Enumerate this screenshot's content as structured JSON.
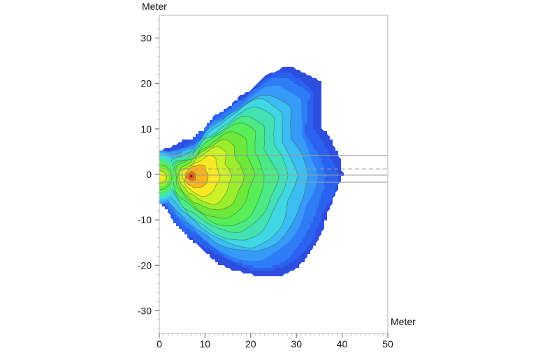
{
  "chart_data": {
    "type": "filled-contour",
    "title": "",
    "xlabel": "Meter",
    "ylabel": "Meter",
    "x_range": [
      0,
      50
    ],
    "y_range": [
      -35,
      35
    ],
    "x_ticks": [
      0,
      10,
      20,
      30,
      40,
      50
    ],
    "y_ticks": [
      -30,
      -20,
      -10,
      0,
      10,
      20,
      30
    ],
    "x_minor_step": 1,
    "y_minor_step": 2,
    "grid": false,
    "legend": false,
    "peak": {
      "x": 7,
      "y": -0.4
    },
    "level_colors": [
      "#2e4ee0",
      "#2b62ef",
      "#2e7cf6",
      "#369bf8",
      "#3bbcf2",
      "#3fd7e2",
      "#43e2b4",
      "#4bea85",
      "#57ee58",
      "#6ee83a",
      "#9cee2d",
      "#ccf128",
      "#f6e822",
      "#f9b51e",
      "#f57d1d"
    ],
    "contour_line_levels_from": 4,
    "outer_boundary": {
      "center": [
        14,
        0
      ],
      "polar_points_deg_r": [
        [
          0,
          26.2
        ],
        [
          10,
          24.9
        ],
        [
          26,
          23.6
        ],
        [
          35,
          25.9
        ],
        [
          43,
          29.2
        ],
        [
          57,
          28.2
        ],
        [
          62,
          26.6
        ],
        [
          72,
          19.6
        ],
        [
          85,
          15.2
        ],
        [
          100,
          13.2
        ],
        [
          112,
          10.8
        ],
        [
          131,
          9.9
        ],
        [
          149,
          11.9
        ],
        [
          160,
          14.9
        ],
        [
          180,
          15.2
        ],
        [
          203,
          15.3
        ],
        [
          215,
          15.0
        ],
        [
          232,
          15.3
        ],
        [
          246,
          15.9
        ],
        [
          260,
          17.5
        ],
        [
          274,
          20.4
        ],
        [
          297,
          25.4
        ],
        [
          310,
          26.1
        ],
        [
          320,
          25.9
        ],
        [
          340,
          24.7
        ],
        [
          356,
          25.9
        ]
      ]
    },
    "left_edge_source": {
      "x": 0,
      "y": -0.6,
      "start_level": 3,
      "rings_ry": [
        5.9,
        5.4,
        4.9,
        4.4,
        3.9,
        3.35,
        2.75,
        2.05,
        1.4,
        0.8
      ],
      "ring_outline_levels": [
        9,
        11
      ]
    },
    "reference_lines": [
      {
        "y": 4.2,
        "style": "solid"
      },
      {
        "y": 1.2,
        "style": "dashed"
      },
      {
        "y": -0.15,
        "style": "solid"
      },
      {
        "y": -1.7,
        "style": "solid"
      }
    ],
    "colors": {
      "frame": "#b3b3b3",
      "tick_major": "#666666",
      "tick_minor": "#c2c2c2",
      "text": "#111111",
      "refline": "#9b9b9b",
      "contour_line": "rgba(55,75,55,0.5)",
      "peak_dot": "#4a1505",
      "peak_ring": "#ea5c15"
    }
  }
}
